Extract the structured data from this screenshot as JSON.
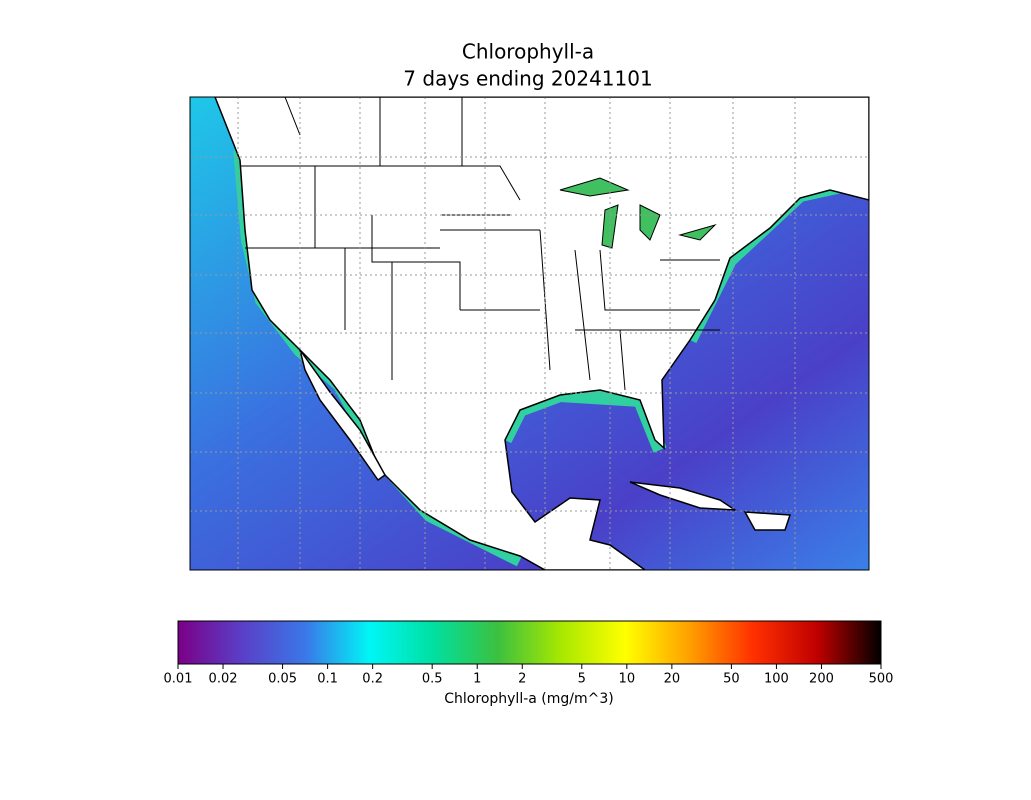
{
  "title": [
    "Chlorophyll-a",
    "7 days ending 20241101"
  ],
  "colorbar": {
    "label": "Chlorophyll-a (mg/m^3)",
    "scale": "log",
    "lim": [
      0.01,
      500
    ],
    "ticks": [
      0.01,
      0.02,
      0.05,
      0.1,
      0.2,
      0.5,
      1,
      2,
      5,
      10,
      20,
      50,
      100,
      200,
      500
    ],
    "colors": [
      "#7b0086",
      "#5a3fc8",
      "#3a78e8",
      "#00f6f6",
      "#00e0a0",
      "#3cc040",
      "#a8e800",
      "#ffff00",
      "#ffa000",
      "#ff3000",
      "#c00000",
      "#000000"
    ]
  }
}
